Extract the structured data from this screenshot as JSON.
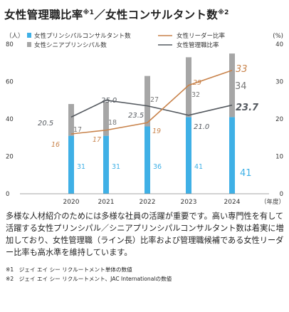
{
  "title": {
    "main1": "女性管理職比率",
    "sup1": "※1",
    "separator": "／",
    "main2": "女性コンサルタント数",
    "sup2": "※2"
  },
  "chart_data": {
    "type": "bar",
    "categories": [
      "2020",
      "2021",
      "2022",
      "2023",
      "2024"
    ],
    "xlabel": "（年度）",
    "left_axis": {
      "unit": "（人）",
      "ticks": [
        "0",
        "20",
        "40",
        "60",
        "80"
      ],
      "ylim": [
        0,
        80
      ]
    },
    "right_axis": {
      "unit": "(%)",
      "ticks": [
        "0",
        "10",
        "20",
        "30",
        "40"
      ],
      "ylim": [
        0,
        40
      ]
    },
    "legend": {
      "principal": "女性プリンシパルコンサルタント数",
      "senior": "女性シニアプリンシパル数",
      "leader": "女性リーダー比率",
      "manager": "女性管理職比率"
    },
    "series": [
      {
        "key": "principal",
        "name": "女性プリンシパルコンサルタント数",
        "values": [
          31,
          31,
          36,
          41,
          41
        ],
        "labels": [
          "31",
          "31",
          "36",
          "41",
          "41"
        ],
        "color": "#3fb0e6"
      },
      {
        "key": "senior",
        "name": "女性シニアプリンシパル数",
        "values": [
          17,
          18,
          27,
          32,
          34
        ],
        "labels": [
          "17",
          "18",
          "27",
          "32",
          "34"
        ],
        "color": "#a6a6a6"
      },
      {
        "key": "leader",
        "name": "女性リーダー比率",
        "values": [
          16,
          17,
          19,
          29,
          33
        ],
        "labels": [
          "16",
          "17",
          "19",
          "29",
          "33"
        ],
        "color": "#c8824a"
      },
      {
        "key": "manager",
        "name": "女性管理職比率",
        "values": [
          20.5,
          25.0,
          23.5,
          21.0,
          23.7
        ],
        "labels": [
          "20.5",
          "25.0",
          "23.5",
          "21.0",
          "23.7"
        ],
        "color": "#555a60"
      }
    ],
    "grid": false,
    "legend_placement": "top"
  },
  "description": "多様な人材紹介のためには多様な社員の活躍が重要です。高い専門性を有して活躍する女性プリンシパル／シニアプリンシパルコンサルタント数は着実に増加しており、女性管理職（ライン長）比率および管理職候補である女性リーダー比率も高水準を維持しています。",
  "notes": [
    "※1　ジェイ エイ シー リクルートメント単体の数値",
    "※2　ジェイ エイ シー リクルートメント、JAC Internationalの数値"
  ]
}
